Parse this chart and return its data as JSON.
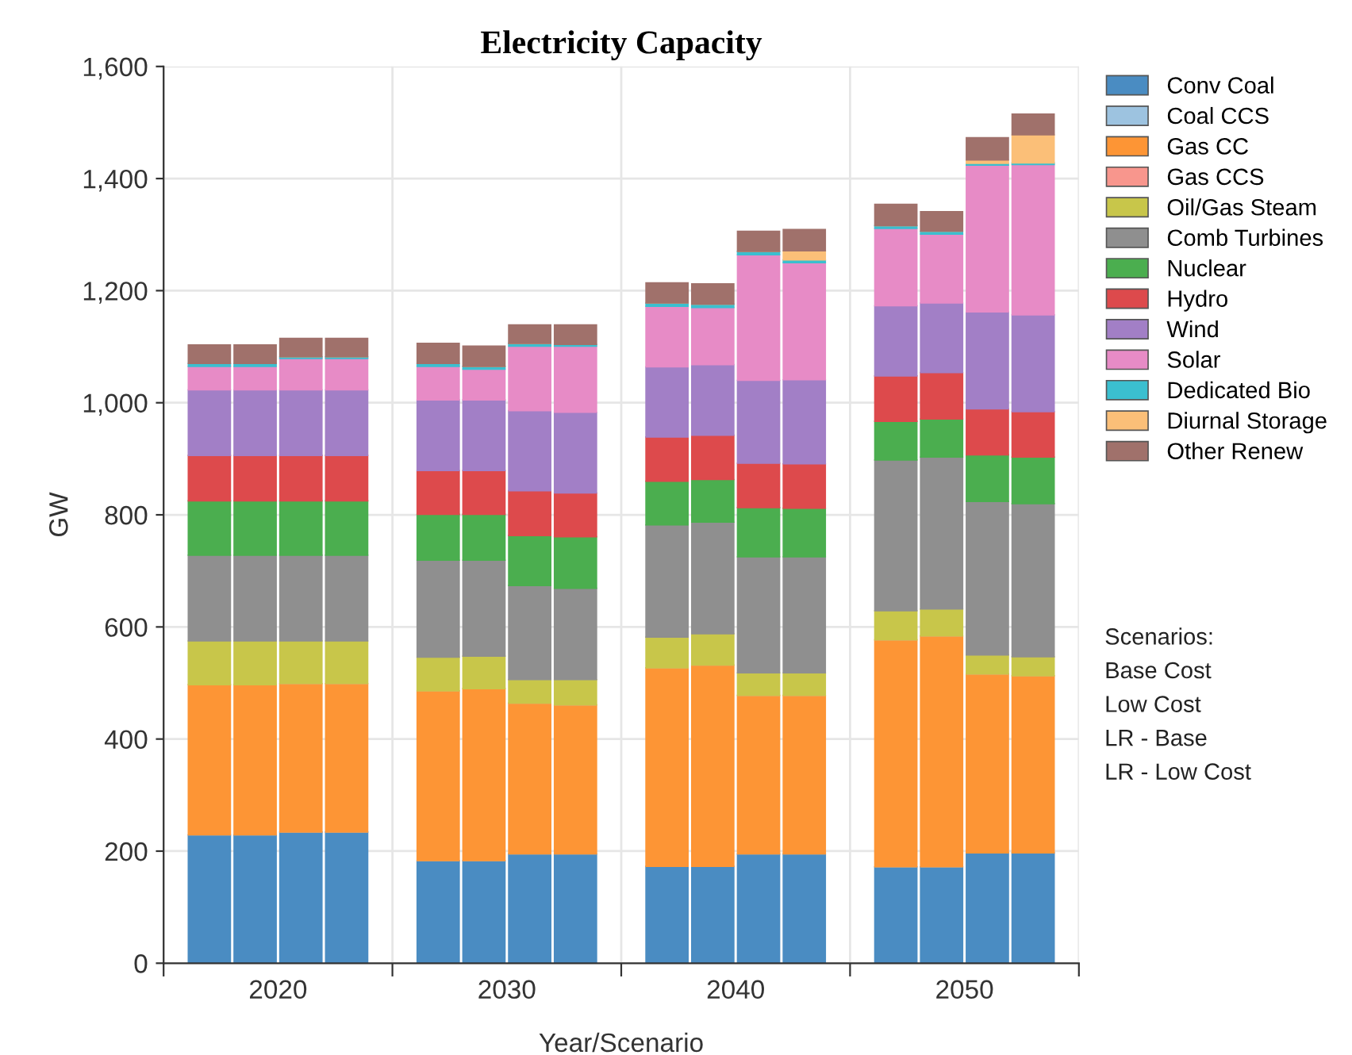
{
  "chart_data": {
    "type": "bar",
    "title": "Electricity Capacity",
    "xlabel": "Year/Scenario",
    "ylabel": "GW",
    "stacked": true,
    "grid": true,
    "legend": "top right",
    "categories": [
      null,
      null,
      null,
      null,
      null,
      null,
      null,
      null,
      null,
      null,
      null,
      null,
      null,
      null,
      null,
      null,
      null,
      null,
      null
    ],
    "ylim": [
      0,
      1600
    ],
    "yticks": [
      0,
      200,
      400,
      600,
      800,
      {
        "value": 1000,
        "label": "1,000"
      },
      {
        "value": 1200,
        "label": "1,200"
      },
      {
        "value": 1400,
        "label": "1,400"
      },
      {
        "value": 1600,
        "label": "1,600"
      }
    ],
    "series": [
      {
        "name": "Conv Coal",
        "color": "#4a8cc2",
        "values": [
          229,
          229,
          234,
          234,
          null,
          183,
          183,
          195,
          195,
          null,
          173,
          173,
          195,
          195,
          null,
          172,
          172,
          197,
          197
        ]
      },
      {
        "name": "Coal CCS",
        "color": "#9dc3e0",
        "values": [
          0,
          0,
          0,
          0,
          null,
          0,
          0,
          0,
          0,
          null,
          0,
          0,
          0,
          0,
          null,
          0,
          0,
          0,
          0
        ]
      },
      {
        "name": "Gas CC",
        "color": "#fd9535",
        "values": [
          268,
          268,
          265,
          265,
          null,
          303,
          307,
          269,
          266,
          null,
          354,
          359,
          283,
          283,
          null,
          405,
          412,
          319,
          316
        ]
      },
      {
        "name": "Gas CCS",
        "color": "#f8968d",
        "values": [
          0,
          0,
          0,
          0,
          null,
          0,
          0,
          0,
          0,
          null,
          0,
          0,
          0,
          0,
          null,
          0,
          0,
          0,
          0
        ]
      },
      {
        "name": "Oil/Gas Steam",
        "color": "#c8c64a",
        "values": [
          78,
          78,
          76,
          76,
          null,
          60,
          58,
          42,
          45,
          null,
          55,
          56,
          40,
          40,
          null,
          52,
          48,
          34,
          34
        ]
      },
      {
        "name": "Comb Turbines",
        "color": "#8f8f8f",
        "values": [
          153,
          153,
          153,
          153,
          null,
          173,
          171,
          168,
          163,
          null,
          200,
          199,
          207,
          207,
          null,
          269,
          271,
          274,
          273
        ]
      },
      {
        "name": "Nuclear",
        "color": "#4bae4f",
        "values": [
          97,
          97,
          97,
          97,
          null,
          82,
          82,
          89,
          92,
          null,
          78,
          76,
          88,
          87,
          null,
          69,
          68,
          83,
          83
        ]
      },
      {
        "name": "Hydro",
        "color": "#dd4a4c",
        "values": [
          81,
          81,
          81,
          81,
          null,
          78,
          78,
          80,
          78,
          null,
          79,
          79,
          79,
          79,
          null,
          81,
          83,
          82,
          81
        ]
      },
      {
        "name": "Wind",
        "color": "#a27fc6",
        "values": [
          117,
          117,
          117,
          117,
          null,
          126,
          126,
          143,
          144,
          null,
          125,
          126,
          148,
          150,
          null,
          125,
          124,
          173,
          173
        ]
      },
      {
        "name": "Solar",
        "color": "#e78bc6",
        "values": [
          42,
          42,
          56,
          56,
          null,
          60,
          55,
          115,
          118,
          null,
          108,
          102,
          224,
          209,
          null,
          138,
          123,
          262,
          268
        ]
      },
      {
        "name": "Dedicated Bio",
        "color": "#3bbfcf",
        "values": [
          5,
          5,
          3,
          3,
          null,
          5,
          5,
          5,
          3,
          null,
          6,
          6,
          6,
          5,
          null,
          5,
          5,
          3,
          3
        ]
      },
      {
        "name": "Diurnal Storage",
        "color": "#fbbf78",
        "values": [
          0,
          0,
          0,
          0,
          null,
          0,
          0,
          0,
          0,
          null,
          0,
          0,
          0,
          16,
          null,
          0,
          0,
          6,
          50
        ]
      },
      {
        "name": "Other Renew",
        "color": "#a0716b",
        "values": [
          33,
          33,
          33,
          33,
          null,
          36,
          36,
          33,
          35,
          null,
          36,
          36,
          36,
          38,
          null,
          38,
          35,
          40,
          37
        ]
      }
    ],
    "annotations": [
      "2020",
      "2030",
      "2040",
      "2050",
      "Scenarios:",
      "Base Cost",
      "Low Cost",
      "LR - Base",
      "LR - Low Cost"
    ]
  }
}
